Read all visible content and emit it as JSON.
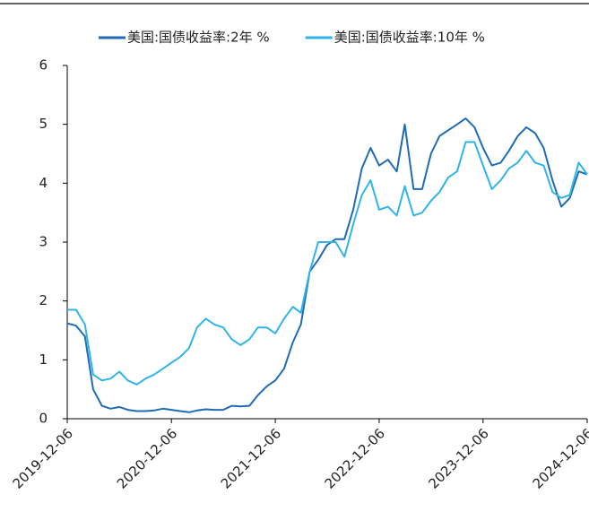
{
  "chart_data": {
    "type": "line",
    "x": [
      "2019-12-06",
      "2020-01-06",
      "2020-02-06",
      "2020-03-06",
      "2020-04-06",
      "2020-05-06",
      "2020-06-06",
      "2020-07-06",
      "2020-08-06",
      "2020-09-06",
      "2020-10-06",
      "2020-11-06",
      "2020-12-06",
      "2021-01-06",
      "2021-02-06",
      "2021-03-06",
      "2021-04-06",
      "2021-05-06",
      "2021-06-06",
      "2021-07-06",
      "2021-08-06",
      "2021-09-06",
      "2021-10-06",
      "2021-11-06",
      "2021-12-06",
      "2022-01-06",
      "2022-02-06",
      "2022-03-06",
      "2022-04-06",
      "2022-05-06",
      "2022-06-06",
      "2022-07-06",
      "2022-08-06",
      "2022-09-06",
      "2022-10-06",
      "2022-11-06",
      "2022-12-06",
      "2023-01-06",
      "2023-02-06",
      "2023-03-06",
      "2023-04-06",
      "2023-05-06",
      "2023-06-06",
      "2023-07-06",
      "2023-08-06",
      "2023-09-06",
      "2023-10-06",
      "2023-11-06",
      "2023-12-06",
      "2024-01-06",
      "2024-02-06",
      "2024-03-06",
      "2024-04-06",
      "2024-05-06",
      "2024-06-06",
      "2024-07-06",
      "2024-08-06",
      "2024-09-06",
      "2024-10-06",
      "2024-11-06",
      "2024-12-06"
    ],
    "series": [
      {
        "name": "美国:国债收益率:2年 %",
        "color": "#1f6cb4",
        "values": [
          1.62,
          1.58,
          1.4,
          0.5,
          0.22,
          0.17,
          0.2,
          0.15,
          0.13,
          0.13,
          0.14,
          0.17,
          0.15,
          0.13,
          0.11,
          0.14,
          0.16,
          0.15,
          0.15,
          0.22,
          0.21,
          0.22,
          0.4,
          0.55,
          0.65,
          0.85,
          1.3,
          1.6,
          2.5,
          2.7,
          2.95,
          3.05,
          3.05,
          3.55,
          4.25,
          4.6,
          4.3,
          4.4,
          4.2,
          5.0,
          3.9,
          3.9,
          4.5,
          4.8,
          4.9,
          5.0,
          5.1,
          4.95,
          4.6,
          4.3,
          4.35,
          4.55,
          4.8,
          4.95,
          4.85,
          4.6,
          4.05,
          3.6,
          3.75,
          4.2,
          4.15
        ]
      },
      {
        "name": "美国:国债收益率:10年 %",
        "color": "#2fb4ea",
        "values": [
          1.85,
          1.85,
          1.6,
          0.75,
          0.65,
          0.68,
          0.8,
          0.65,
          0.58,
          0.68,
          0.75,
          0.85,
          0.95,
          1.05,
          1.2,
          1.55,
          1.7,
          1.6,
          1.55,
          1.35,
          1.25,
          1.35,
          1.55,
          1.55,
          1.45,
          1.7,
          1.9,
          1.8,
          2.5,
          3.0,
          3.0,
          3.0,
          2.75,
          3.3,
          3.8,
          4.05,
          3.55,
          3.6,
          3.45,
          3.95,
          3.45,
          3.5,
          3.7,
          3.85,
          4.1,
          4.2,
          4.7,
          4.7,
          4.3,
          3.9,
          4.05,
          4.25,
          4.35,
          4.55,
          4.35,
          4.3,
          3.85,
          3.75,
          3.8,
          4.35,
          4.15
        ]
      }
    ],
    "xlim": [
      "2019-12-06",
      "2024-12-06"
    ],
    "xticks": [
      "2019-12-06",
      "2020-12-06",
      "2021-12-06",
      "2022-12-06",
      "2023-12-06",
      "2024-12-06"
    ],
    "ylim": [
      0,
      6
    ],
    "yticks": [
      0,
      1,
      2,
      3,
      4,
      5,
      6
    ],
    "legend": "top"
  }
}
